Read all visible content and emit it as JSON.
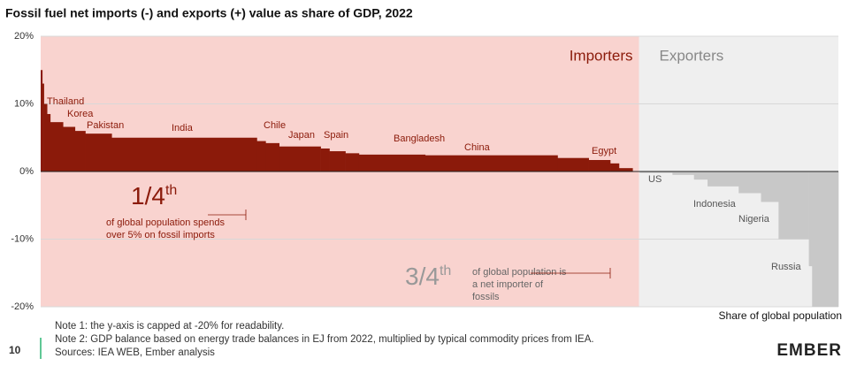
{
  "chart_data": {
    "type": "step-area",
    "title": "Fossil fuel net imports (-) and exports (+) value as share of GDP, 2022",
    "x_label": "Share of global population",
    "x": [
      0,
      0.002,
      0.004,
      0.008,
      0.012,
      0.028,
      0.043,
      0.056,
      0.089,
      0.271,
      0.282,
      0.299,
      0.351,
      0.362,
      0.382,
      0.399,
      0.482,
      0.648,
      0.687,
      0.714,
      0.725,
      0.742,
      0.751,
      0.792,
      0.819,
      0.836,
      0.875,
      0.903,
      0.925,
      0.963,
      0.967
    ],
    "values": [
      15,
      13,
      10,
      8.5,
      7.3,
      6.6,
      6.0,
      5.6,
      5.0,
      4.5,
      4.2,
      3.7,
      3.4,
      3.0,
      2.7,
      2.5,
      2.4,
      2.0,
      1.7,
      1.2,
      0.5,
      0,
      -0.2,
      -0.5,
      -1.2,
      -2.2,
      -3.2,
      -4.5,
      -10,
      -14,
      -20
    ],
    "colors": {
      "positive": "#8b1a0a",
      "negative": "#c8c8c8"
    },
    "xlim": [
      0,
      1
    ],
    "ylim": [
      -20,
      20
    ],
    "yticks": [
      {
        "value": 20,
        "label": "20%"
      },
      {
        "value": 10,
        "label": "10%"
      },
      {
        "value": 0,
        "label": "0%"
      },
      {
        "value": -10,
        "label": "-10%"
      },
      {
        "value": -20,
        "label": "-20%"
      }
    ],
    "grid": true,
    "regions": [
      {
        "label": "Importers",
        "xrange": [
          0,
          0.75
        ],
        "color": "#f9d3cf",
        "text_color": "#8b1a0a"
      },
      {
        "label": "Exporters",
        "xrange": [
          0.75,
          1
        ],
        "color": "#efefef",
        "text_color": "#888888"
      }
    ],
    "country_labels": [
      "Thailand",
      "Korea",
      "Pakistan",
      "India",
      "Chile",
      "Japan",
      "Spain",
      "Bangladesh",
      "China",
      "Egypt",
      "US",
      "Indonesia",
      "Nigeria",
      "Russia"
    ],
    "annotations": [
      {
        "big": "1/4",
        "sup": "th",
        "text": [
          "of global population spends",
          "over 5% on fossil imports"
        ]
      },
      {
        "big": "3/4",
        "sup": "th",
        "text": [
          "of global population is",
          "a net importer of",
          "fossils"
        ]
      }
    ]
  },
  "footer": {
    "notes": [
      "Note 1: the y-axis is capped at -20% for readability.",
      "Note 2: GDP balance based on energy trade balances in EJ from 2022, multiplied by typical commodity prices from IEA.",
      "Sources: IEA WEB, Ember analysis"
    ],
    "page_number": "10",
    "logo": "EMBER"
  }
}
